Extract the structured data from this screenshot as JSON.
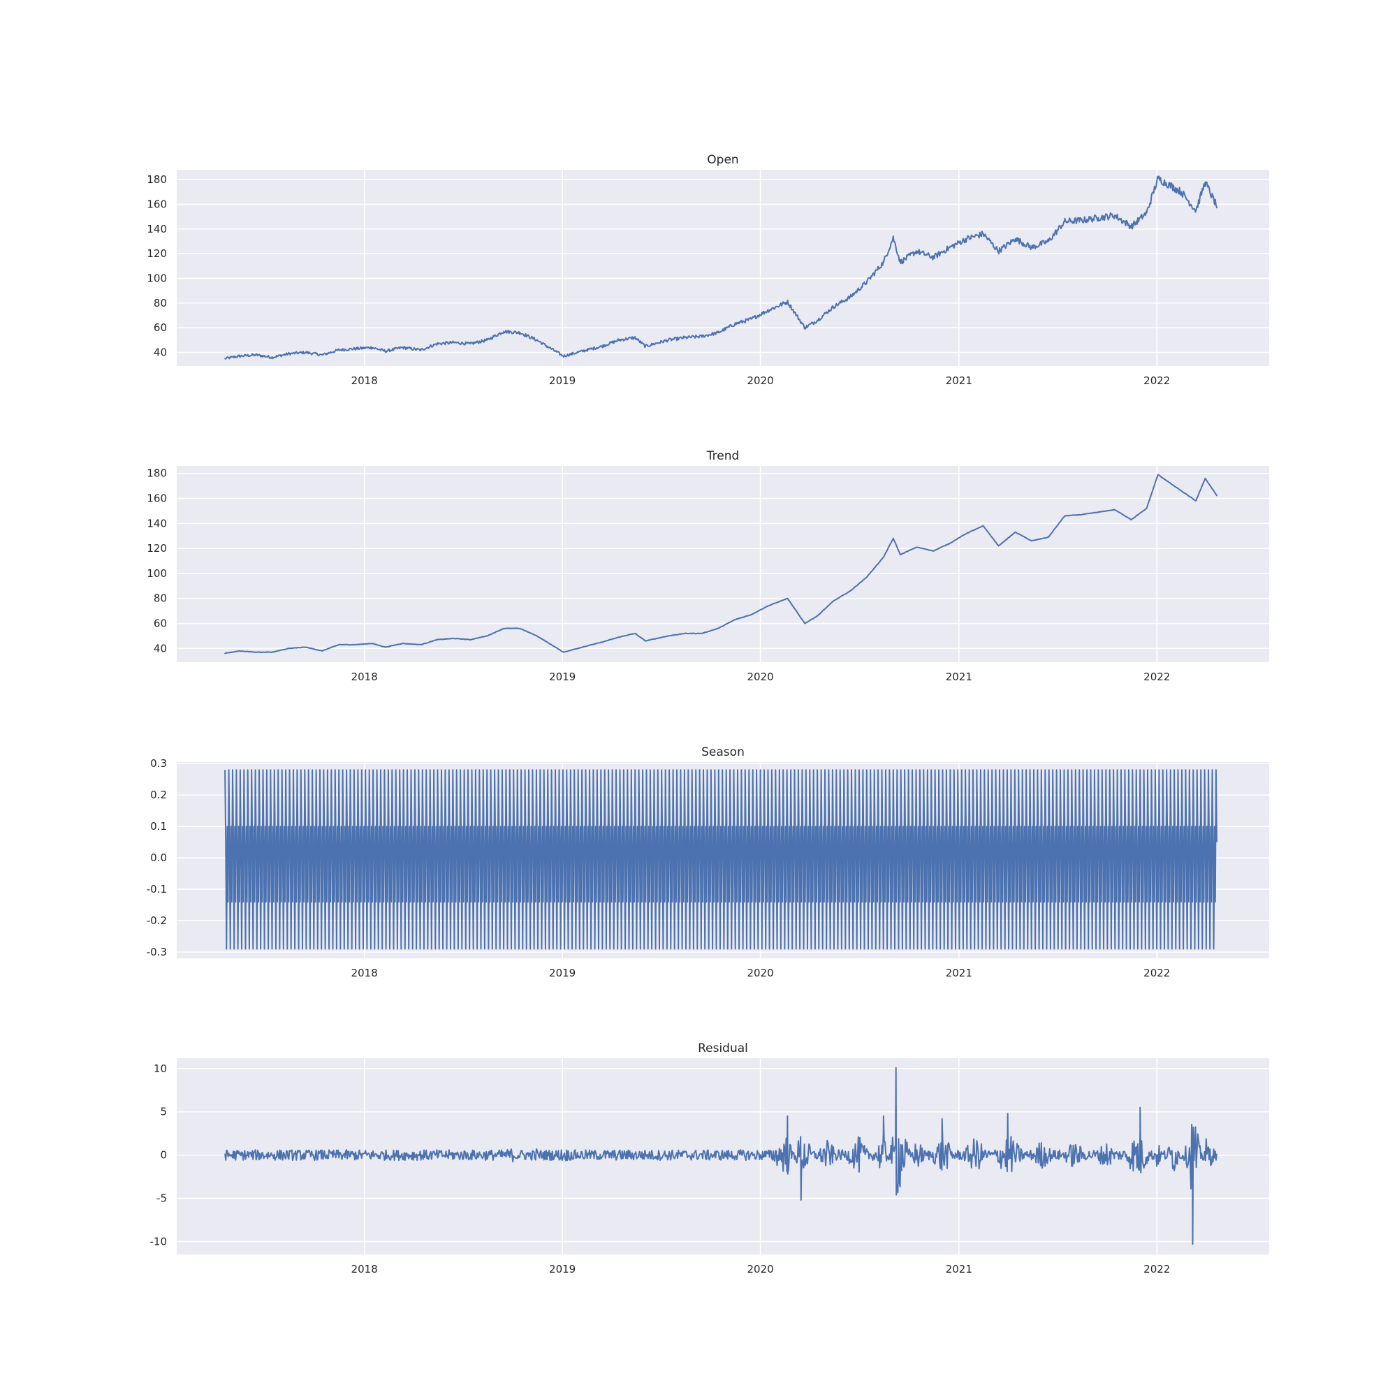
{
  "chart_data": [
    {
      "type": "line",
      "title": "Open",
      "xlabel": "",
      "ylabel": "",
      "xlim": [
        "2017-01-20",
        "2022-07-27"
      ],
      "ylim": [
        29,
        188
      ],
      "x_ticks": [
        "2018",
        "2019",
        "2020",
        "2021",
        "2022"
      ],
      "y_ticks": [
        40,
        60,
        80,
        100,
        120,
        140,
        160,
        180
      ],
      "grid": true,
      "color": "#4c72b0",
      "series": [
        {
          "x": [
            "2017-04-19",
            "2017-05-15",
            "2017-06-15",
            "2017-07-15",
            "2017-08-15",
            "2017-09-15",
            "2017-10-15",
            "2017-11-15",
            "2017-12-15",
            "2018-01-15",
            "2018-02-09",
            "2018-03-12",
            "2018-04-15",
            "2018-05-15",
            "2018-06-15",
            "2018-07-15",
            "2018-08-15",
            "2018-09-15",
            "2018-10-15",
            "2018-11-15",
            "2019-01-03",
            "2019-02-15",
            "2019-03-15",
            "2019-04-15",
            "2019-05-15",
            "2019-06-03",
            "2019-07-15",
            "2019-08-15",
            "2019-09-15",
            "2019-10-15",
            "2019-11-15",
            "2019-12-15",
            "2020-01-15",
            "2020-02-20",
            "2020-03-23",
            "2020-04-15",
            "2020-05-15",
            "2020-06-15",
            "2020-07-15",
            "2020-08-15",
            "2020-09-02",
            "2020-09-15",
            "2020-10-15",
            "2020-11-15",
            "2020-12-15",
            "2021-01-15",
            "2021-02-15",
            "2021-03-15",
            "2021-04-15",
            "2021-05-15",
            "2021-06-15",
            "2021-07-15",
            "2021-08-15",
            "2021-09-15",
            "2021-10-15",
            "2021-11-15",
            "2021-12-13",
            "2022-01-03",
            "2022-02-15",
            "2022-03-14",
            "2022-03-31",
            "2022-04-22"
          ],
          "y": [
            35,
            37,
            38,
            36,
            39,
            40,
            38,
            42,
            43,
            44,
            41,
            44,
            42,
            47,
            48,
            47,
            50,
            57,
            56,
            50,
            37,
            42,
            45,
            50,
            52,
            45,
            50,
            52,
            53,
            56,
            63,
            67,
            74,
            81,
            60,
            66,
            77,
            85,
            97,
            113,
            133,
            113,
            122,
            117,
            125,
            132,
            136,
            122,
            132,
            125,
            130,
            146,
            147,
            149,
            151,
            142,
            153,
            181,
            170,
            155,
            178,
            158
          ]
        }
      ]
    },
    {
      "type": "line",
      "title": "Trend",
      "xlabel": "",
      "ylabel": "",
      "xlim": [
        "2017-01-20",
        "2022-07-27"
      ],
      "ylim": [
        29,
        186
      ],
      "x_ticks": [
        "2018",
        "2019",
        "2020",
        "2021",
        "2022"
      ],
      "y_ticks": [
        40,
        60,
        80,
        100,
        120,
        140,
        160,
        180
      ],
      "grid": true,
      "color": "#4c72b0",
      "series": [
        {
          "x": [
            "2017-04-19",
            "2017-05-15",
            "2017-06-15",
            "2017-07-15",
            "2017-08-15",
            "2017-09-15",
            "2017-10-15",
            "2017-11-15",
            "2017-12-15",
            "2018-01-15",
            "2018-02-09",
            "2018-03-12",
            "2018-04-15",
            "2018-05-15",
            "2018-06-15",
            "2018-07-15",
            "2018-08-15",
            "2018-09-15",
            "2018-10-15",
            "2018-11-15",
            "2019-01-03",
            "2019-02-15",
            "2019-03-15",
            "2019-04-15",
            "2019-05-15",
            "2019-06-03",
            "2019-07-15",
            "2019-08-15",
            "2019-09-15",
            "2019-10-15",
            "2019-11-15",
            "2019-12-15",
            "2020-01-15",
            "2020-02-20",
            "2020-03-23",
            "2020-04-15",
            "2020-05-15",
            "2020-06-15",
            "2020-07-15",
            "2020-08-15",
            "2020-09-02",
            "2020-09-15",
            "2020-10-15",
            "2020-11-15",
            "2020-12-15",
            "2021-01-15",
            "2021-02-15",
            "2021-03-15",
            "2021-04-15",
            "2021-05-15",
            "2021-06-15",
            "2021-07-15",
            "2021-08-15",
            "2021-09-15",
            "2021-10-15",
            "2021-11-15",
            "2021-12-13",
            "2022-01-03",
            "2022-02-15",
            "2022-03-14",
            "2022-03-31",
            "2022-04-22"
          ],
          "y": [
            36,
            38,
            37,
            37,
            40,
            41,
            38,
            43,
            43,
            44,
            41,
            44,
            43,
            47,
            48,
            47,
            50,
            56,
            56,
            50,
            37,
            42,
            45,
            49,
            52,
            46,
            50,
            52,
            52,
            56,
            63,
            67,
            74,
            80,
            60,
            66,
            78,
            86,
            97,
            113,
            128,
            115,
            121,
            118,
            124,
            132,
            138,
            122,
            133,
            126,
            129,
            146,
            147,
            149,
            151,
            143,
            152,
            179,
            166,
            158,
            176,
            162
          ]
        }
      ]
    },
    {
      "type": "line",
      "title": "Season",
      "xlabel": "",
      "ylabel": "",
      "xlim": [
        "2017-01-20",
        "2022-07-27"
      ],
      "ylim": [
        -0.32,
        0.305
      ],
      "x_ticks": [
        "2018",
        "2019",
        "2020",
        "2021",
        "2022"
      ],
      "y_ticks": [
        -0.3,
        -0.2,
        -0.1,
        0.0,
        0.1,
        0.2,
        0.3
      ],
      "grid": true,
      "color": "#4c72b0",
      "series": [
        {
          "x_start": "2017-04-19",
          "x_end": "2022-04-22",
          "period_days": 7,
          "cycle": [
            0.28,
            0.05,
            -0.29,
            0.1,
            -0.14
          ]
        }
      ]
    },
    {
      "type": "line",
      "title": "Residual",
      "xlabel": "",
      "ylabel": "",
      "xlim": [
        "2017-01-20",
        "2022-07-27"
      ],
      "ylim": [
        -11.5,
        11.2
      ],
      "x_ticks": [
        "2018",
        "2019",
        "2020",
        "2021",
        "2022"
      ],
      "y_ticks": [
        -10,
        -5,
        0,
        5,
        10
      ],
      "grid": true,
      "color": "#4c72b0",
      "series": [
        {
          "x": [
            "2017-04-19",
            "2017-07-01",
            "2017-10-01",
            "2018-01-01",
            "2018-04-01",
            "2018-07-01",
            "2018-10-01",
            "2018-11-15",
            "2019-01-01",
            "2019-04-01",
            "2019-07-01",
            "2019-10-01",
            "2020-01-01",
            "2020-02-20",
            "2020-03-16",
            "2020-05-01",
            "2020-07-01",
            "2020-08-15",
            "2020-09-01",
            "2020-09-07",
            "2020-10-15",
            "2020-12-01",
            "2021-02-01",
            "2021-04-01",
            "2021-06-01",
            "2021-08-01",
            "2021-10-01",
            "2021-12-01",
            "2022-01-01",
            "2022-02-01",
            "2022-03-01",
            "2022-03-08",
            "2022-03-31",
            "2022-04-22"
          ],
          "y": [
            -0.2,
            1.0,
            -0.8,
            1.0,
            -1.2,
            1.0,
            -1.5,
            1.5,
            -1.5,
            1.0,
            -1.0,
            1.2,
            -1.0,
            4.5,
            -5.2,
            3.5,
            -4.0,
            4.5,
            -4.0,
            10.1,
            -3.5,
            4.2,
            -4.0,
            4.8,
            -3.2,
            3.0,
            -3.0,
            5.5,
            -3.0,
            4.0,
            -3.5,
            -10.3,
            3.8,
            0.5
          ]
        }
      ]
    }
  ]
}
